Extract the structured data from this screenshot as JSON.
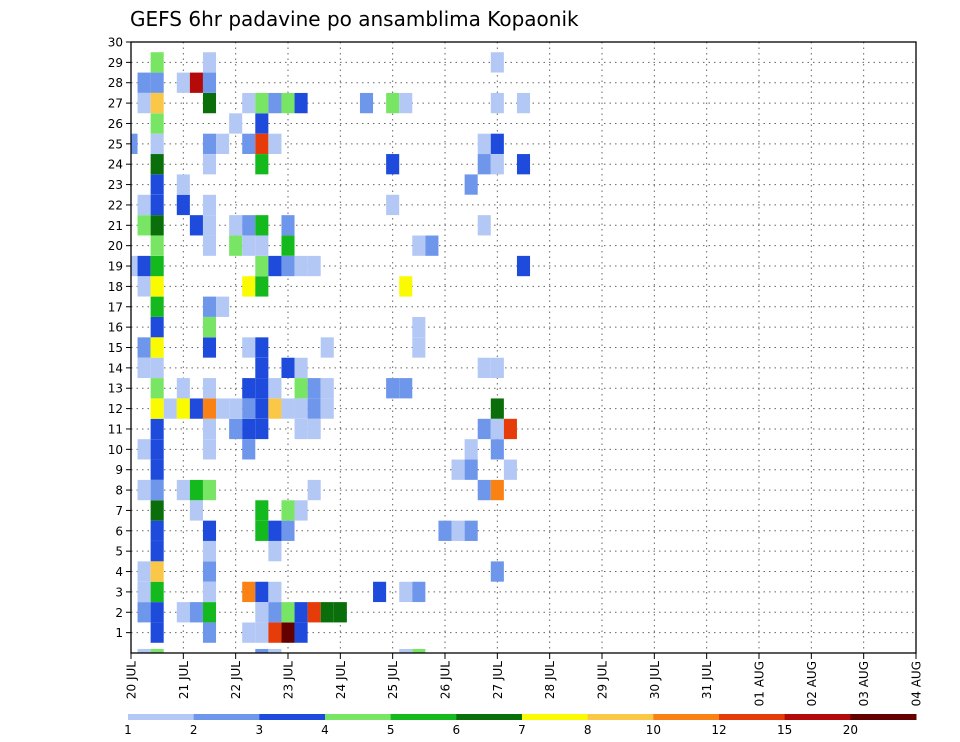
{
  "chart_data": {
    "type": "heatmap",
    "title": "GEFS 6hr padavine po ansamblima Kopaonik",
    "x_tick_labels": [
      "20 JUL",
      "21 JUL",
      "22 JUL",
      "23 JUL",
      "24 JUL",
      "25 JUL",
      "26 JUL",
      "27 JUL",
      "28 JUL",
      "29 JUL",
      "30 JUL",
      "31 JUL",
      "01 AUG",
      "02 AUG",
      "03 AUG",
      "04 AUG"
    ],
    "y_tick_labels": [
      "1",
      "2",
      "3",
      "4",
      "5",
      "6",
      "7",
      "8",
      "9",
      "10",
      "11",
      "12",
      "13",
      "14",
      "15",
      "16",
      "17",
      "18",
      "19",
      "20",
      "21",
      "22",
      "23",
      "24",
      "25",
      "26",
      "27",
      "28",
      "29",
      "30"
    ],
    "ylim": [
      0,
      30
    ],
    "grid": true,
    "x_unit": "6-hour step (0 = 20 JUL)",
    "colorbar": {
      "labels": [
        "1",
        "2",
        "3",
        "4",
        "5",
        "6",
        "7",
        "8",
        "10",
        "12",
        "15",
        "20"
      ],
      "colors": [
        "#b4c8f5",
        "#6e96eb",
        "#1e4bdc",
        "#78e664",
        "#14b91e",
        "#0a6e0a",
        "#fafa00",
        "#fac846",
        "#fa8214",
        "#e63c0a",
        "#b40a0a",
        "#640000"
      ]
    },
    "cells": [
      [
        2,
        1,
        "#1e4bdc"
      ],
      [
        6,
        1,
        "#6e96eb"
      ],
      [
        9,
        1,
        "#b4c8f5"
      ],
      [
        10,
        1,
        "#b4c8f5"
      ],
      [
        11,
        1,
        "#e63c0a"
      ],
      [
        12,
        1,
        "#640000"
      ],
      [
        13,
        1,
        "#1e4bdc"
      ],
      [
        1,
        2,
        "#6e96eb"
      ],
      [
        2,
        2,
        "#1e4bdc"
      ],
      [
        4,
        2,
        "#b4c8f5"
      ],
      [
        5,
        2,
        "#6e96eb"
      ],
      [
        6,
        2,
        "#14b91e"
      ],
      [
        10,
        2,
        "#b4c8f5"
      ],
      [
        11,
        2,
        "#6e96eb"
      ],
      [
        12,
        2,
        "#78e664"
      ],
      [
        13,
        2,
        "#1e4bdc"
      ],
      [
        14,
        2,
        "#e63c0a"
      ],
      [
        15,
        2,
        "#0a6e0a"
      ],
      [
        16,
        2,
        "#0a6e0a"
      ],
      [
        1,
        3,
        "#b4c8f5"
      ],
      [
        2,
        3,
        "#14b91e"
      ],
      [
        6,
        3,
        "#b4c8f5"
      ],
      [
        9,
        3,
        "#fa8214"
      ],
      [
        10,
        3,
        "#1e4bdc"
      ],
      [
        11,
        3,
        "#b4c8f5"
      ],
      [
        19,
        3,
        "#1e4bdc"
      ],
      [
        21,
        3,
        "#b4c8f5"
      ],
      [
        22,
        3,
        "#6e96eb"
      ],
      [
        1,
        4,
        "#b4c8f5"
      ],
      [
        2,
        4,
        "#fac846"
      ],
      [
        6,
        4,
        "#6e96eb"
      ],
      [
        28,
        4,
        "#6e96eb"
      ],
      [
        2,
        5,
        "#1e4bdc"
      ],
      [
        6,
        5,
        "#b4c8f5"
      ],
      [
        11,
        5,
        "#b4c8f5"
      ],
      [
        2,
        6,
        "#1e4bdc"
      ],
      [
        6,
        6,
        "#1e4bdc"
      ],
      [
        10,
        6,
        "#14b91e"
      ],
      [
        11,
        6,
        "#1e4bdc"
      ],
      [
        12,
        6,
        "#6e96eb"
      ],
      [
        24,
        6,
        "#6e96eb"
      ],
      [
        25,
        6,
        "#b4c8f5"
      ],
      [
        26,
        6,
        "#6e96eb"
      ],
      [
        2,
        7,
        "#0a6e0a"
      ],
      [
        5,
        7,
        "#b4c8f5"
      ],
      [
        10,
        7,
        "#14b91e"
      ],
      [
        12,
        7,
        "#78e664"
      ],
      [
        13,
        7,
        "#b4c8f5"
      ],
      [
        1,
        8,
        "#b4c8f5"
      ],
      [
        2,
        8,
        "#6e96eb"
      ],
      [
        4,
        8,
        "#b4c8f5"
      ],
      [
        5,
        8,
        "#14b91e"
      ],
      [
        6,
        8,
        "#78e664"
      ],
      [
        14,
        8,
        "#b4c8f5"
      ],
      [
        27,
        8,
        "#6e96eb"
      ],
      [
        28,
        8,
        "#fa8214"
      ],
      [
        2,
        9,
        "#1e4bdc"
      ],
      [
        25,
        9,
        "#b4c8f5"
      ],
      [
        26,
        9,
        "#6e96eb"
      ],
      [
        29,
        9,
        "#b4c8f5"
      ],
      [
        1,
        10,
        "#b4c8f5"
      ],
      [
        2,
        10,
        "#1e4bdc"
      ],
      [
        6,
        10,
        "#b4c8f5"
      ],
      [
        9,
        10,
        "#6e96eb"
      ],
      [
        26,
        10,
        "#b4c8f5"
      ],
      [
        28,
        10,
        "#6e96eb"
      ],
      [
        2,
        11,
        "#1e4bdc"
      ],
      [
        6,
        11,
        "#b4c8f5"
      ],
      [
        8,
        11,
        "#6e96eb"
      ],
      [
        9,
        11,
        "#1e4bdc"
      ],
      [
        10,
        11,
        "#1e4bdc"
      ],
      [
        13,
        11,
        "#b4c8f5"
      ],
      [
        14,
        11,
        "#b4c8f5"
      ],
      [
        27,
        11,
        "#6e96eb"
      ],
      [
        28,
        11,
        "#b4c8f5"
      ],
      [
        29,
        11,
        "#e63c0a"
      ],
      [
        2,
        12,
        "#fafa00"
      ],
      [
        3,
        12,
        "#b4c8f5"
      ],
      [
        4,
        12,
        "#fafa00"
      ],
      [
        5,
        12,
        "#1e4bdc"
      ],
      [
        6,
        12,
        "#fa8214"
      ],
      [
        7,
        12,
        "#b4c8f5"
      ],
      [
        8,
        12,
        "#b4c8f5"
      ],
      [
        9,
        12,
        "#6e96eb"
      ],
      [
        10,
        12,
        "#1e4bdc"
      ],
      [
        11,
        12,
        "#fac846"
      ],
      [
        12,
        12,
        "#b4c8f5"
      ],
      [
        13,
        12,
        "#b4c8f5"
      ],
      [
        14,
        12,
        "#6e96eb"
      ],
      [
        15,
        12,
        "#b4c8f5"
      ],
      [
        28,
        12,
        "#0a6e0a"
      ],
      [
        2,
        13,
        "#78e664"
      ],
      [
        4,
        13,
        "#b4c8f5"
      ],
      [
        6,
        13,
        "#b4c8f5"
      ],
      [
        9,
        13,
        "#1e4bdc"
      ],
      [
        10,
        13,
        "#1e4bdc"
      ],
      [
        11,
        13,
        "#b4c8f5"
      ],
      [
        13,
        13,
        "#78e664"
      ],
      [
        14,
        13,
        "#6e96eb"
      ],
      [
        15,
        13,
        "#b4c8f5"
      ],
      [
        20,
        13,
        "#6e96eb"
      ],
      [
        21,
        13,
        "#6e96eb"
      ],
      [
        1,
        14,
        "#b4c8f5"
      ],
      [
        2,
        14,
        "#b4c8f5"
      ],
      [
        10,
        14,
        "#1e4bdc"
      ],
      [
        12,
        14,
        "#1e4bdc"
      ],
      [
        13,
        14,
        "#b4c8f5"
      ],
      [
        27,
        14,
        "#b4c8f5"
      ],
      [
        28,
        14,
        "#b4c8f5"
      ],
      [
        1,
        15,
        "#6e96eb"
      ],
      [
        2,
        15,
        "#fafa00"
      ],
      [
        6,
        15,
        "#1e4bdc"
      ],
      [
        9,
        15,
        "#b4c8f5"
      ],
      [
        10,
        15,
        "#1e4bdc"
      ],
      [
        15,
        15,
        "#b4c8f5"
      ],
      [
        22,
        15,
        "#b4c8f5"
      ],
      [
        2,
        16,
        "#1e4bdc"
      ],
      [
        6,
        16,
        "#78e664"
      ],
      [
        22,
        16,
        "#b4c8f5"
      ],
      [
        2,
        17,
        "#14b91e"
      ],
      [
        6,
        17,
        "#6e96eb"
      ],
      [
        7,
        17,
        "#b4c8f5"
      ],
      [
        1,
        18,
        "#b4c8f5"
      ],
      [
        2,
        18,
        "#fafa00"
      ],
      [
        9,
        18,
        "#fafa00"
      ],
      [
        10,
        18,
        "#14b91e"
      ],
      [
        21,
        18,
        "#fafa00"
      ],
      [
        0,
        19,
        "#b4c8f5"
      ],
      [
        1,
        19,
        "#1e4bdc"
      ],
      [
        2,
        19,
        "#14b91e"
      ],
      [
        10,
        19,
        "#78e664"
      ],
      [
        11,
        19,
        "#1e4bdc"
      ],
      [
        12,
        19,
        "#6e96eb"
      ],
      [
        13,
        19,
        "#b4c8f5"
      ],
      [
        14,
        19,
        "#b4c8f5"
      ],
      [
        30,
        19,
        "#1e4bdc"
      ],
      [
        2,
        20,
        "#78e664"
      ],
      [
        6,
        20,
        "#b4c8f5"
      ],
      [
        8,
        20,
        "#78e664"
      ],
      [
        9,
        20,
        "#b4c8f5"
      ],
      [
        10,
        20,
        "#b4c8f5"
      ],
      [
        12,
        20,
        "#14b91e"
      ],
      [
        22,
        20,
        "#b4c8f5"
      ],
      [
        23,
        20,
        "#6e96eb"
      ],
      [
        1,
        21,
        "#78e664"
      ],
      [
        2,
        21,
        "#0a6e0a"
      ],
      [
        5,
        21,
        "#1e4bdc"
      ],
      [
        6,
        21,
        "#b4c8f5"
      ],
      [
        8,
        21,
        "#b4c8f5"
      ],
      [
        9,
        21,
        "#6e96eb"
      ],
      [
        10,
        21,
        "#14b91e"
      ],
      [
        12,
        21,
        "#6e96eb"
      ],
      [
        27,
        21,
        "#b4c8f5"
      ],
      [
        1,
        22,
        "#b4c8f5"
      ],
      [
        2,
        22,
        "#1e4bdc"
      ],
      [
        4,
        22,
        "#1e4bdc"
      ],
      [
        6,
        22,
        "#b4c8f5"
      ],
      [
        20,
        22,
        "#b4c8f5"
      ],
      [
        2,
        23,
        "#1e4bdc"
      ],
      [
        4,
        23,
        "#b4c8f5"
      ],
      [
        26,
        23,
        "#6e96eb"
      ],
      [
        2,
        24,
        "#0a6e0a"
      ],
      [
        6,
        24,
        "#b4c8f5"
      ],
      [
        10,
        24,
        "#14b91e"
      ],
      [
        20,
        24,
        "#1e4bdc"
      ],
      [
        27,
        24,
        "#6e96eb"
      ],
      [
        28,
        24,
        "#b4c8f5"
      ],
      [
        30,
        24,
        "#1e4bdc"
      ],
      [
        0,
        25,
        "#6e96eb"
      ],
      [
        2,
        25,
        "#b4c8f5"
      ],
      [
        6,
        25,
        "#6e96eb"
      ],
      [
        7,
        25,
        "#b4c8f5"
      ],
      [
        9,
        25,
        "#6e96eb"
      ],
      [
        10,
        25,
        "#e63c0a"
      ],
      [
        11,
        25,
        "#b4c8f5"
      ],
      [
        27,
        25,
        "#b4c8f5"
      ],
      [
        28,
        25,
        "#1e4bdc"
      ],
      [
        2,
        26,
        "#78e664"
      ],
      [
        8,
        26,
        "#b4c8f5"
      ],
      [
        10,
        26,
        "#1e4bdc"
      ],
      [
        1,
        27,
        "#b4c8f5"
      ],
      [
        2,
        27,
        "#fac846"
      ],
      [
        6,
        27,
        "#0a6e0a"
      ],
      [
        9,
        27,
        "#b4c8f5"
      ],
      [
        10,
        27,
        "#78e664"
      ],
      [
        11,
        27,
        "#6e96eb"
      ],
      [
        12,
        27,
        "#78e664"
      ],
      [
        13,
        27,
        "#1e4bdc"
      ],
      [
        18,
        27,
        "#6e96eb"
      ],
      [
        20,
        27,
        "#78e664"
      ],
      [
        21,
        27,
        "#b4c8f5"
      ],
      [
        28,
        27,
        "#b4c8f5"
      ],
      [
        30,
        27,
        "#b4c8f5"
      ],
      [
        1,
        28,
        "#6e96eb"
      ],
      [
        2,
        28,
        "#6e96eb"
      ],
      [
        4,
        28,
        "#b4c8f5"
      ],
      [
        5,
        28,
        "#b40a0a"
      ],
      [
        6,
        28,
        "#6e96eb"
      ],
      [
        2,
        29,
        "#78e664"
      ],
      [
        6,
        29,
        "#b4c8f5"
      ],
      [
        28,
        29,
        "#b4c8f5"
      ],
      [
        1,
        -0.3,
        "#b4c8f5"
      ],
      [
        2,
        -0.3,
        "#78e664"
      ],
      [
        10,
        -0.3,
        "#6e96eb"
      ],
      [
        11,
        -0.3,
        "#b4c8f5"
      ],
      [
        21,
        -0.3,
        "#b4c8f5"
      ],
      [
        22,
        -0.3,
        "#78e664"
      ]
    ]
  }
}
